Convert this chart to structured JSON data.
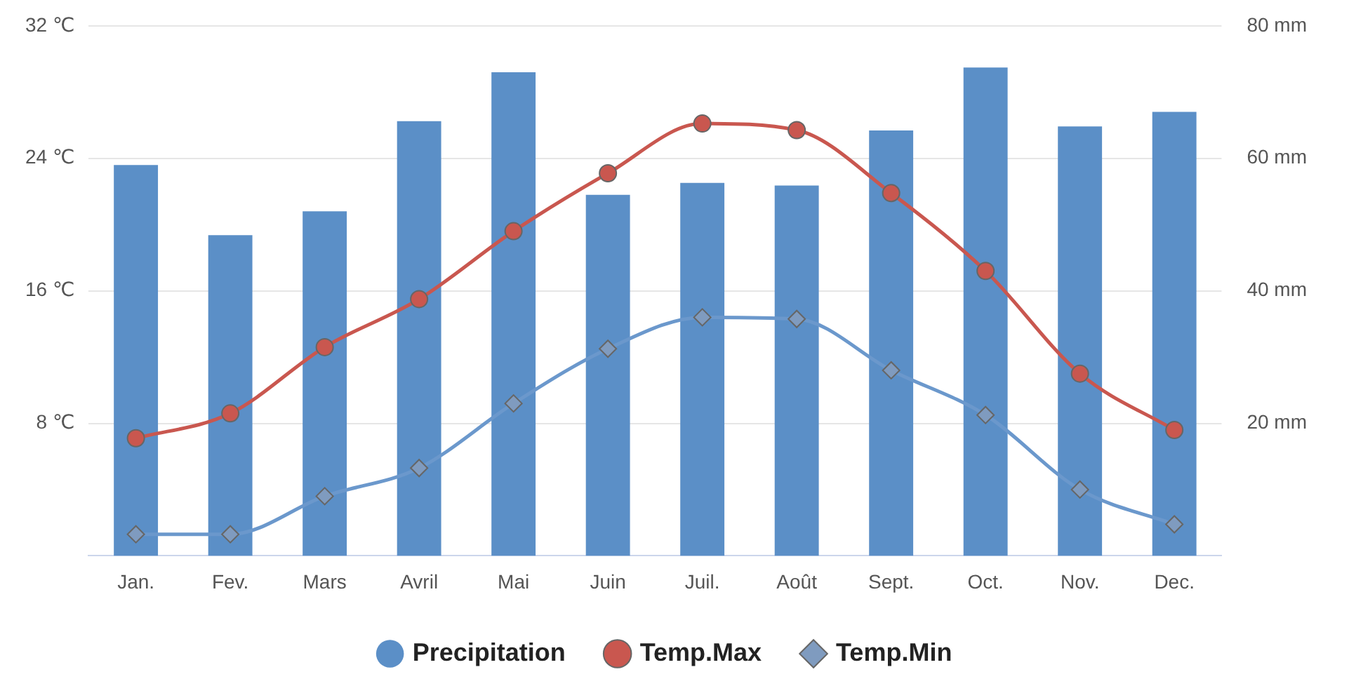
{
  "chart_data": {
    "type": "bar",
    "categories": [
      "Jan.",
      "Fev.",
      "Mars",
      "Avril",
      "Mai",
      "Juin",
      "Juil.",
      "Août",
      "Sept.",
      "Oct.",
      "Nov.",
      "Dec."
    ],
    "series": [
      {
        "name": "Precipitation",
        "axis": "y2",
        "color": "#5b8fc7",
        "values": [
          59,
          48.4,
          52,
          65.6,
          73,
          54.5,
          56.3,
          55.9,
          64.2,
          73.7,
          64.8,
          67
        ]
      },
      {
        "name": "Temp.Max",
        "type": "line",
        "color": "#c9574f",
        "marker": "circle",
        "values": [
          7.1,
          8.6,
          12.6,
          15.5,
          19.6,
          23.1,
          26.1,
          25.7,
          21.9,
          17.2,
          11,
          7.6
        ]
      },
      {
        "name": "Temp.Min",
        "type": "line",
        "color": "#6b98cc",
        "marker": "diamond",
        "values": [
          1.3,
          1.3,
          3.6,
          5.3,
          9.2,
          12.5,
          14.4,
          14.3,
          11.2,
          8.5,
          4,
          1.9
        ]
      }
    ],
    "ylim": [
      0,
      32
    ],
    "yticks": [
      {
        "value": 0,
        "label": null
      },
      {
        "value": 8,
        "label": "8 ℃"
      },
      {
        "value": 16,
        "label": "16 ℃"
      },
      {
        "value": 24,
        "label": "24 ℃"
      },
      {
        "value": 32,
        "label": "32 ℃"
      }
    ],
    "y2lim": [
      0,
      80
    ],
    "y2ticks": [
      {
        "value": 0,
        "label": null
      },
      {
        "value": 20,
        "label": "20 mm"
      },
      {
        "value": 40,
        "label": "40 mm"
      },
      {
        "value": 60,
        "label": "60 mm"
      },
      {
        "value": 80,
        "label": "80 mm"
      }
    ],
    "grid": "y",
    "legend": "bottom"
  }
}
